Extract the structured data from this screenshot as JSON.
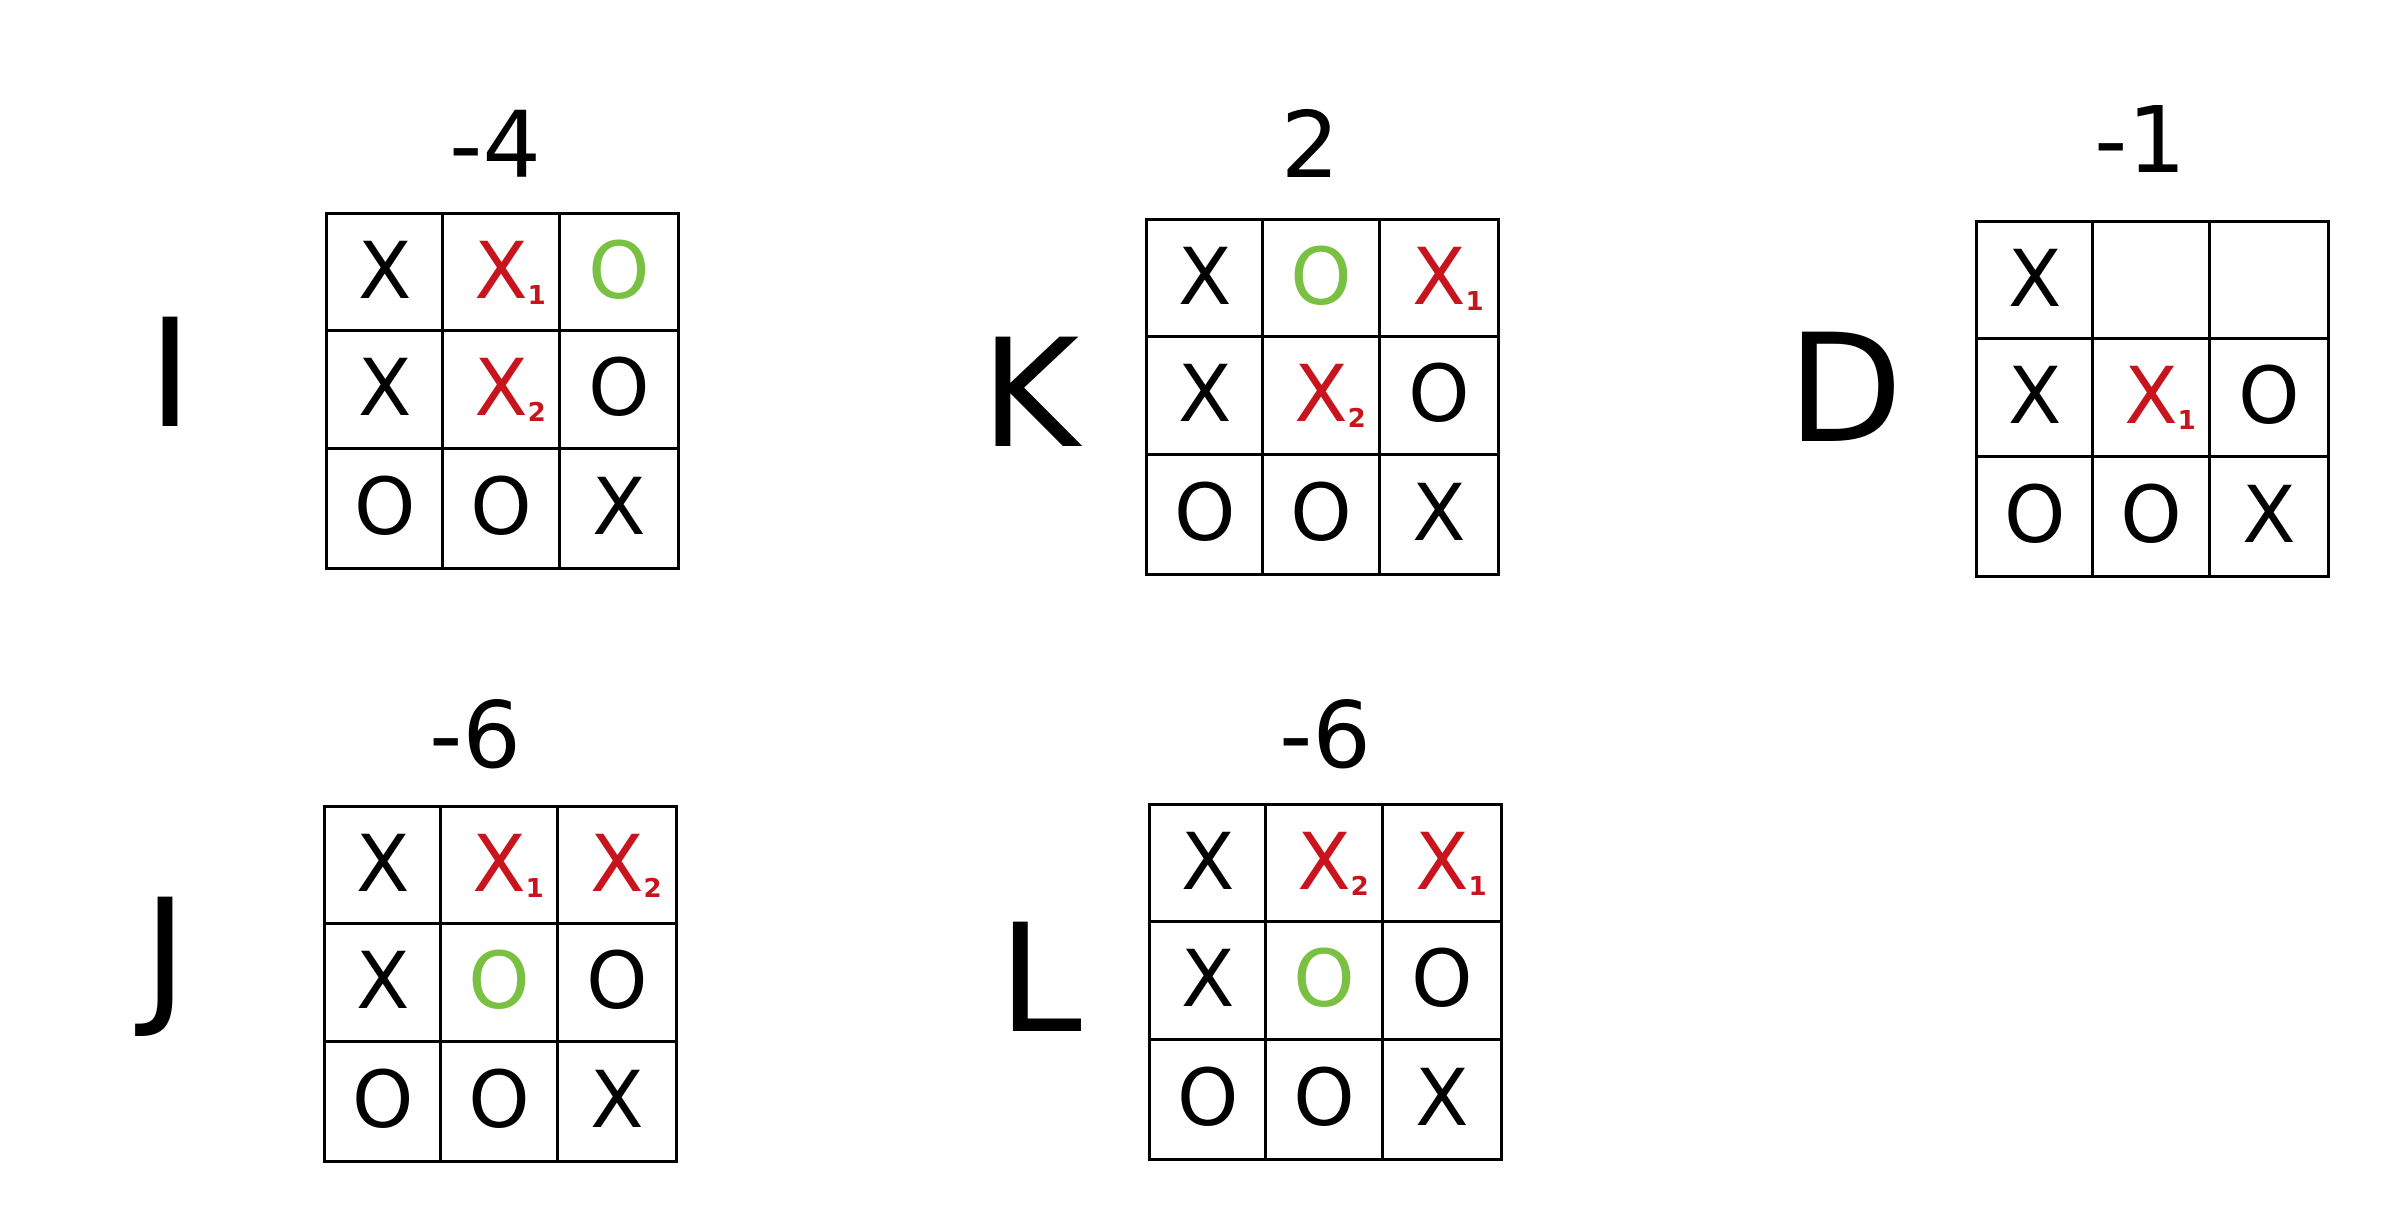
{
  "colors": {
    "ink": "#000000",
    "red": "#c8141c",
    "green": "#7ac143"
  },
  "boards": [
    {
      "id": "I",
      "label": "I",
      "score": "-4",
      "cells": [
        {
          "mark": "X",
          "color": "black",
          "sub": ""
        },
        {
          "mark": "X",
          "color": "red",
          "sub": "1"
        },
        {
          "mark": "O",
          "color": "green",
          "sub": ""
        },
        {
          "mark": "X",
          "color": "black",
          "sub": ""
        },
        {
          "mark": "X",
          "color": "red",
          "sub": "2"
        },
        {
          "mark": "O",
          "color": "black",
          "sub": ""
        },
        {
          "mark": "O",
          "color": "black",
          "sub": ""
        },
        {
          "mark": "O",
          "color": "black",
          "sub": ""
        },
        {
          "mark": "X",
          "color": "black",
          "sub": ""
        }
      ]
    },
    {
      "id": "K",
      "label": "K",
      "score": "2",
      "cells": [
        {
          "mark": "X",
          "color": "black",
          "sub": ""
        },
        {
          "mark": "O",
          "color": "green",
          "sub": ""
        },
        {
          "mark": "X",
          "color": "red",
          "sub": "1"
        },
        {
          "mark": "X",
          "color": "black",
          "sub": ""
        },
        {
          "mark": "X",
          "color": "red",
          "sub": "2"
        },
        {
          "mark": "O",
          "color": "black",
          "sub": ""
        },
        {
          "mark": "O",
          "color": "black",
          "sub": ""
        },
        {
          "mark": "O",
          "color": "black",
          "sub": ""
        },
        {
          "mark": "X",
          "color": "black",
          "sub": ""
        }
      ]
    },
    {
      "id": "D",
      "label": "D",
      "score": "-1",
      "cells": [
        {
          "mark": "X",
          "color": "black",
          "sub": ""
        },
        {
          "mark": "",
          "color": "black",
          "sub": ""
        },
        {
          "mark": "",
          "color": "black",
          "sub": ""
        },
        {
          "mark": "X",
          "color": "black",
          "sub": ""
        },
        {
          "mark": "X",
          "color": "red",
          "sub": "1"
        },
        {
          "mark": "O",
          "color": "black",
          "sub": ""
        },
        {
          "mark": "O",
          "color": "black",
          "sub": ""
        },
        {
          "mark": "O",
          "color": "black",
          "sub": ""
        },
        {
          "mark": "X",
          "color": "black",
          "sub": ""
        }
      ]
    },
    {
      "id": "J",
      "label": "J",
      "score": "-6",
      "cells": [
        {
          "mark": "X",
          "color": "black",
          "sub": ""
        },
        {
          "mark": "X",
          "color": "red",
          "sub": "1"
        },
        {
          "mark": "X",
          "color": "red",
          "sub": "2"
        },
        {
          "mark": "X",
          "color": "black",
          "sub": ""
        },
        {
          "mark": "O",
          "color": "green",
          "sub": ""
        },
        {
          "mark": "O",
          "color": "black",
          "sub": ""
        },
        {
          "mark": "O",
          "color": "black",
          "sub": ""
        },
        {
          "mark": "O",
          "color": "black",
          "sub": ""
        },
        {
          "mark": "X",
          "color": "black",
          "sub": ""
        }
      ]
    },
    {
      "id": "L",
      "label": "L",
      "score": "-6",
      "cells": [
        {
          "mark": "X",
          "color": "black",
          "sub": ""
        },
        {
          "mark": "X",
          "color": "red",
          "sub": "2"
        },
        {
          "mark": "X",
          "color": "red",
          "sub": "1"
        },
        {
          "mark": "X",
          "color": "black",
          "sub": ""
        },
        {
          "mark": "O",
          "color": "green",
          "sub": ""
        },
        {
          "mark": "O",
          "color": "black",
          "sub": ""
        },
        {
          "mark": "O",
          "color": "black",
          "sub": ""
        },
        {
          "mark": "O",
          "color": "black",
          "sub": ""
        },
        {
          "mark": "X",
          "color": "black",
          "sub": ""
        }
      ]
    }
  ]
}
